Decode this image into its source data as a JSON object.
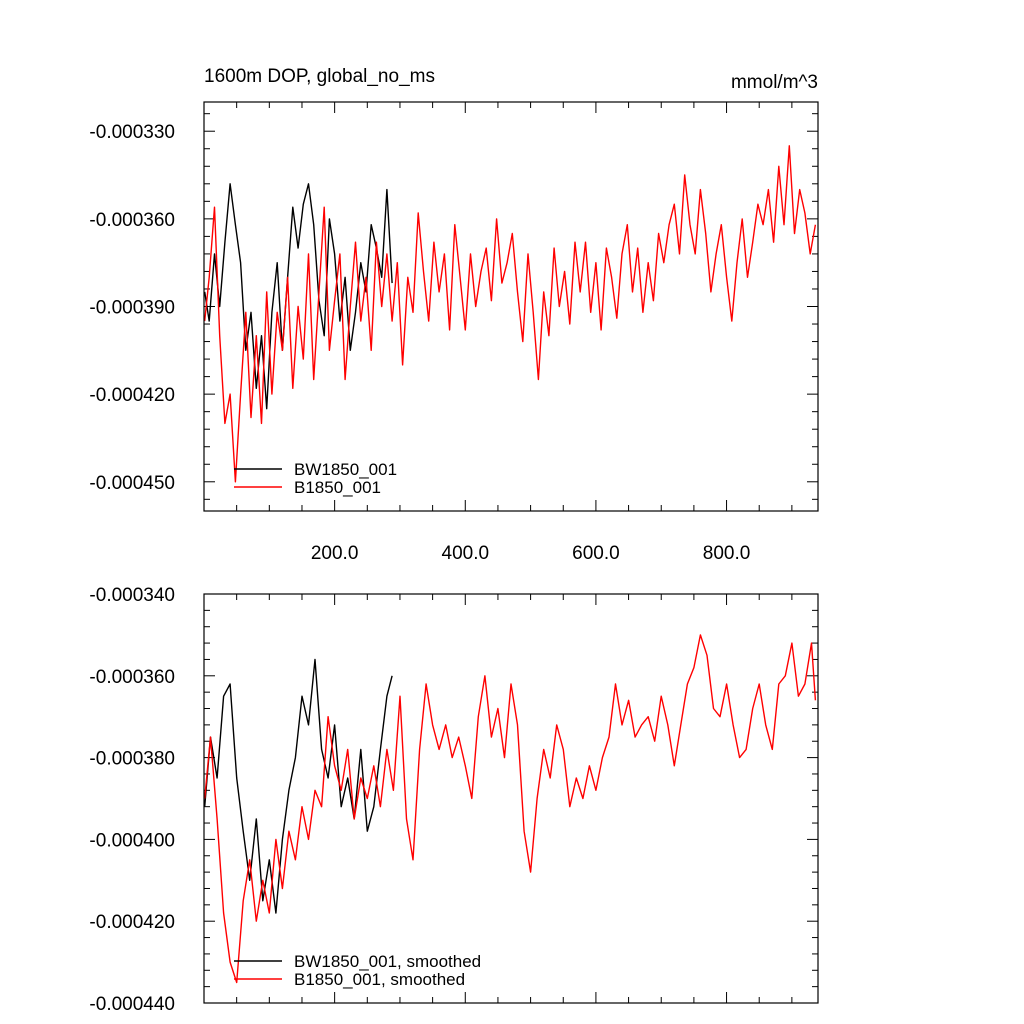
{
  "chart_data": [
    {
      "type": "line",
      "title": "1600m DOP, global_no_ms",
      "units": "mmol/m^3",
      "xlabel": "",
      "ylabel": "",
      "xlim": [
        0,
        940
      ],
      "ylim": [
        -0.00046,
        -0.00032
      ],
      "x_ticks": [
        200,
        400,
        600,
        800
      ],
      "x_tick_labels": [
        "200.0",
        "400.0",
        "600.0",
        "800.0"
      ],
      "y_ticks": [
        -0.00033,
        -0.00036,
        -0.00039,
        -0.00042,
        -0.00045
      ],
      "y_tick_labels": [
        "-0.000330",
        "-0.000360",
        "-0.000390",
        "-0.000420",
        "-0.000450"
      ],
      "legend_position": "bottom-left",
      "grid": false,
      "series": [
        {
          "name": "BW1850_001",
          "color": "#000000",
          "x": [
            1,
            8,
            16,
            24,
            32,
            40,
            48,
            56,
            64,
            72,
            80,
            88,
            96,
            104,
            112,
            120,
            128,
            136,
            144,
            152,
            160,
            168,
            176,
            184,
            192,
            200,
            208,
            216,
            224,
            232,
            240,
            248,
            256,
            264,
            272,
            280,
            288
          ],
          "values": [
            -0.000385,
            -0.000395,
            -0.000372,
            -0.00039,
            -0.000368,
            -0.000348,
            -0.000362,
            -0.000375,
            -0.000405,
            -0.000392,
            -0.000418,
            -0.0004,
            -0.000425,
            -0.000392,
            -0.000375,
            -0.000405,
            -0.00038,
            -0.000356,
            -0.00037,
            -0.000355,
            -0.000348,
            -0.000362,
            -0.000388,
            -0.0004,
            -0.00036,
            -0.000372,
            -0.000395,
            -0.00038,
            -0.000405,
            -0.000392,
            -0.000375,
            -0.000385,
            -0.000362,
            -0.00037,
            -0.00038,
            -0.00035,
            -0.000382
          ]
        },
        {
          "name": "B1850_001",
          "color": "#ff0000",
          "x": [
            1,
            8,
            16,
            24,
            32,
            40,
            48,
            56,
            64,
            72,
            80,
            88,
            96,
            104,
            112,
            120,
            128,
            136,
            144,
            152,
            160,
            168,
            176,
            184,
            192,
            200,
            208,
            216,
            224,
            232,
            240,
            248,
            256,
            264,
            272,
            280,
            288,
            296,
            304,
            312,
            320,
            328,
            336,
            344,
            352,
            360,
            368,
            376,
            384,
            392,
            400,
            408,
            416,
            424,
            432,
            440,
            448,
            456,
            464,
            472,
            480,
            488,
            496,
            504,
            512,
            520,
            528,
            536,
            544,
            552,
            560,
            568,
            576,
            584,
            592,
            600,
            608,
            616,
            624,
            632,
            640,
            648,
            656,
            664,
            672,
            680,
            688,
            696,
            704,
            712,
            720,
            728,
            736,
            744,
            752,
            760,
            768,
            776,
            784,
            792,
            800,
            808,
            816,
            824,
            832,
            840,
            848,
            856,
            864,
            872,
            880,
            888,
            896,
            904,
            912,
            920,
            928,
            936
          ],
          "values": [
            -0.000395,
            -0.00038,
            -0.000356,
            -0.0004,
            -0.00043,
            -0.00042,
            -0.00045,
            -0.00042,
            -0.000392,
            -0.000428,
            -0.0004,
            -0.00043,
            -0.000385,
            -0.00042,
            -0.000392,
            -0.000405,
            -0.00038,
            -0.000418,
            -0.00039,
            -0.000408,
            -0.000372,
            -0.000415,
            -0.000385,
            -0.000356,
            -0.000405,
            -0.000388,
            -0.000372,
            -0.000415,
            -0.00039,
            -0.000368,
            -0.000395,
            -0.00038,
            -0.000405,
            -0.000368,
            -0.00039,
            -0.000372,
            -0.000395,
            -0.000375,
            -0.00041,
            -0.00038,
            -0.000392,
            -0.000358,
            -0.000378,
            -0.000395,
            -0.000368,
            -0.000385,
            -0.000372,
            -0.000398,
            -0.000362,
            -0.00038,
            -0.000398,
            -0.000372,
            -0.00039,
            -0.000378,
            -0.00037,
            -0.000388,
            -0.00036,
            -0.000382,
            -0.000375,
            -0.000365,
            -0.000385,
            -0.000402,
            -0.000372,
            -0.000392,
            -0.000415,
            -0.000385,
            -0.0004,
            -0.00037,
            -0.00039,
            -0.000378,
            -0.000396,
            -0.000368,
            -0.000385,
            -0.000368,
            -0.000392,
            -0.000375,
            -0.000398,
            -0.00037,
            -0.00038,
            -0.000394,
            -0.000372,
            -0.000362,
            -0.000385,
            -0.00037,
            -0.000392,
            -0.000375,
            -0.000388,
            -0.000365,
            -0.000375,
            -0.000362,
            -0.000355,
            -0.000372,
            -0.000345,
            -0.000362,
            -0.000372,
            -0.00035,
            -0.000365,
            -0.000385,
            -0.000372,
            -0.000362,
            -0.00038,
            -0.000395,
            -0.000375,
            -0.00036,
            -0.00038,
            -0.000368,
            -0.000355,
            -0.000362,
            -0.00035,
            -0.000368,
            -0.000342,
            -0.000362,
            -0.000335,
            -0.000365,
            -0.00035,
            -0.000358,
            -0.000372,
            -0.000362
          ]
        }
      ]
    },
    {
      "type": "line",
      "title": "",
      "xlabel": "",
      "ylabel": "",
      "xlim": [
        0,
        940
      ],
      "ylim": [
        -0.00044,
        -0.00034
      ],
      "y_ticks": [
        -0.00034,
        -0.00036,
        -0.00038,
        -0.0004,
        -0.00042,
        -0.00044
      ],
      "y_tick_labels": [
        "-0.000340",
        "-0.000360",
        "-0.000380",
        "-0.000400",
        "-0.000420",
        "-0.000440"
      ],
      "legend_position": "bottom-left",
      "grid": false,
      "series": [
        {
          "name": "BW1850_001, smoothed",
          "color": "#000000",
          "x": [
            1,
            10,
            20,
            30,
            40,
            50,
            60,
            70,
            80,
            90,
            100,
            110,
            120,
            130,
            140,
            150,
            160,
            170,
            180,
            190,
            200,
            210,
            220,
            230,
            240,
            250,
            260,
            270,
            280,
            288
          ],
          "values": [
            -0.000392,
            -0.000375,
            -0.000385,
            -0.000365,
            -0.000362,
            -0.000385,
            -0.000398,
            -0.00041,
            -0.000395,
            -0.000415,
            -0.000405,
            -0.000418,
            -0.0004,
            -0.000388,
            -0.00038,
            -0.000365,
            -0.000372,
            -0.000356,
            -0.000378,
            -0.000385,
            -0.000372,
            -0.000392,
            -0.000385,
            -0.000395,
            -0.000378,
            -0.000398,
            -0.000392,
            -0.000378,
            -0.000365,
            -0.00036
          ]
        },
        {
          "name": "B1850_001, smoothed",
          "color": "#ff0000",
          "x": [
            1,
            10,
            20,
            30,
            40,
            50,
            60,
            70,
            80,
            90,
            100,
            110,
            120,
            130,
            140,
            150,
            160,
            170,
            180,
            190,
            200,
            210,
            220,
            230,
            240,
            250,
            260,
            270,
            280,
            290,
            300,
            310,
            320,
            330,
            340,
            350,
            360,
            370,
            380,
            390,
            400,
            410,
            420,
            430,
            440,
            450,
            460,
            470,
            480,
            490,
            500,
            510,
            520,
            530,
            540,
            550,
            560,
            570,
            580,
            590,
            600,
            610,
            620,
            630,
            640,
            650,
            660,
            670,
            680,
            690,
            700,
            710,
            720,
            730,
            740,
            750,
            760,
            770,
            780,
            790,
            800,
            810,
            820,
            830,
            840,
            850,
            860,
            870,
            880,
            890,
            900,
            910,
            920,
            930,
            936
          ],
          "values": [
            -0.00039,
            -0.000375,
            -0.000395,
            -0.000418,
            -0.00043,
            -0.000435,
            -0.000415,
            -0.000405,
            -0.00042,
            -0.00041,
            -0.000418,
            -0.0004,
            -0.000412,
            -0.000398,
            -0.000405,
            -0.000392,
            -0.0004,
            -0.000388,
            -0.000392,
            -0.00037,
            -0.000382,
            -0.000388,
            -0.000378,
            -0.000395,
            -0.000385,
            -0.00039,
            -0.000382,
            -0.000392,
            -0.000378,
            -0.000388,
            -0.000365,
            -0.000395,
            -0.000405,
            -0.000378,
            -0.000362,
            -0.000372,
            -0.000378,
            -0.000372,
            -0.00038,
            -0.000375,
            -0.000382,
            -0.00039,
            -0.00037,
            -0.00036,
            -0.000375,
            -0.000368,
            -0.00038,
            -0.000362,
            -0.000372,
            -0.000398,
            -0.000408,
            -0.00039,
            -0.000378,
            -0.000385,
            -0.000372,
            -0.000378,
            -0.000392,
            -0.000385,
            -0.00039,
            -0.000382,
            -0.000388,
            -0.00038,
            -0.000375,
            -0.000362,
            -0.000372,
            -0.000366,
            -0.000375,
            -0.000372,
            -0.00037,
            -0.000376,
            -0.000365,
            -0.000372,
            -0.000382,
            -0.000372,
            -0.000362,
            -0.000358,
            -0.00035,
            -0.000355,
            -0.000368,
            -0.00037,
            -0.000362,
            -0.000372,
            -0.00038,
            -0.000378,
            -0.000368,
            -0.000362,
            -0.000372,
            -0.000378,
            -0.000362,
            -0.00036,
            -0.000352,
            -0.000365,
            -0.000362,
            -0.000352,
            -0.000366
          ]
        }
      ]
    }
  ]
}
